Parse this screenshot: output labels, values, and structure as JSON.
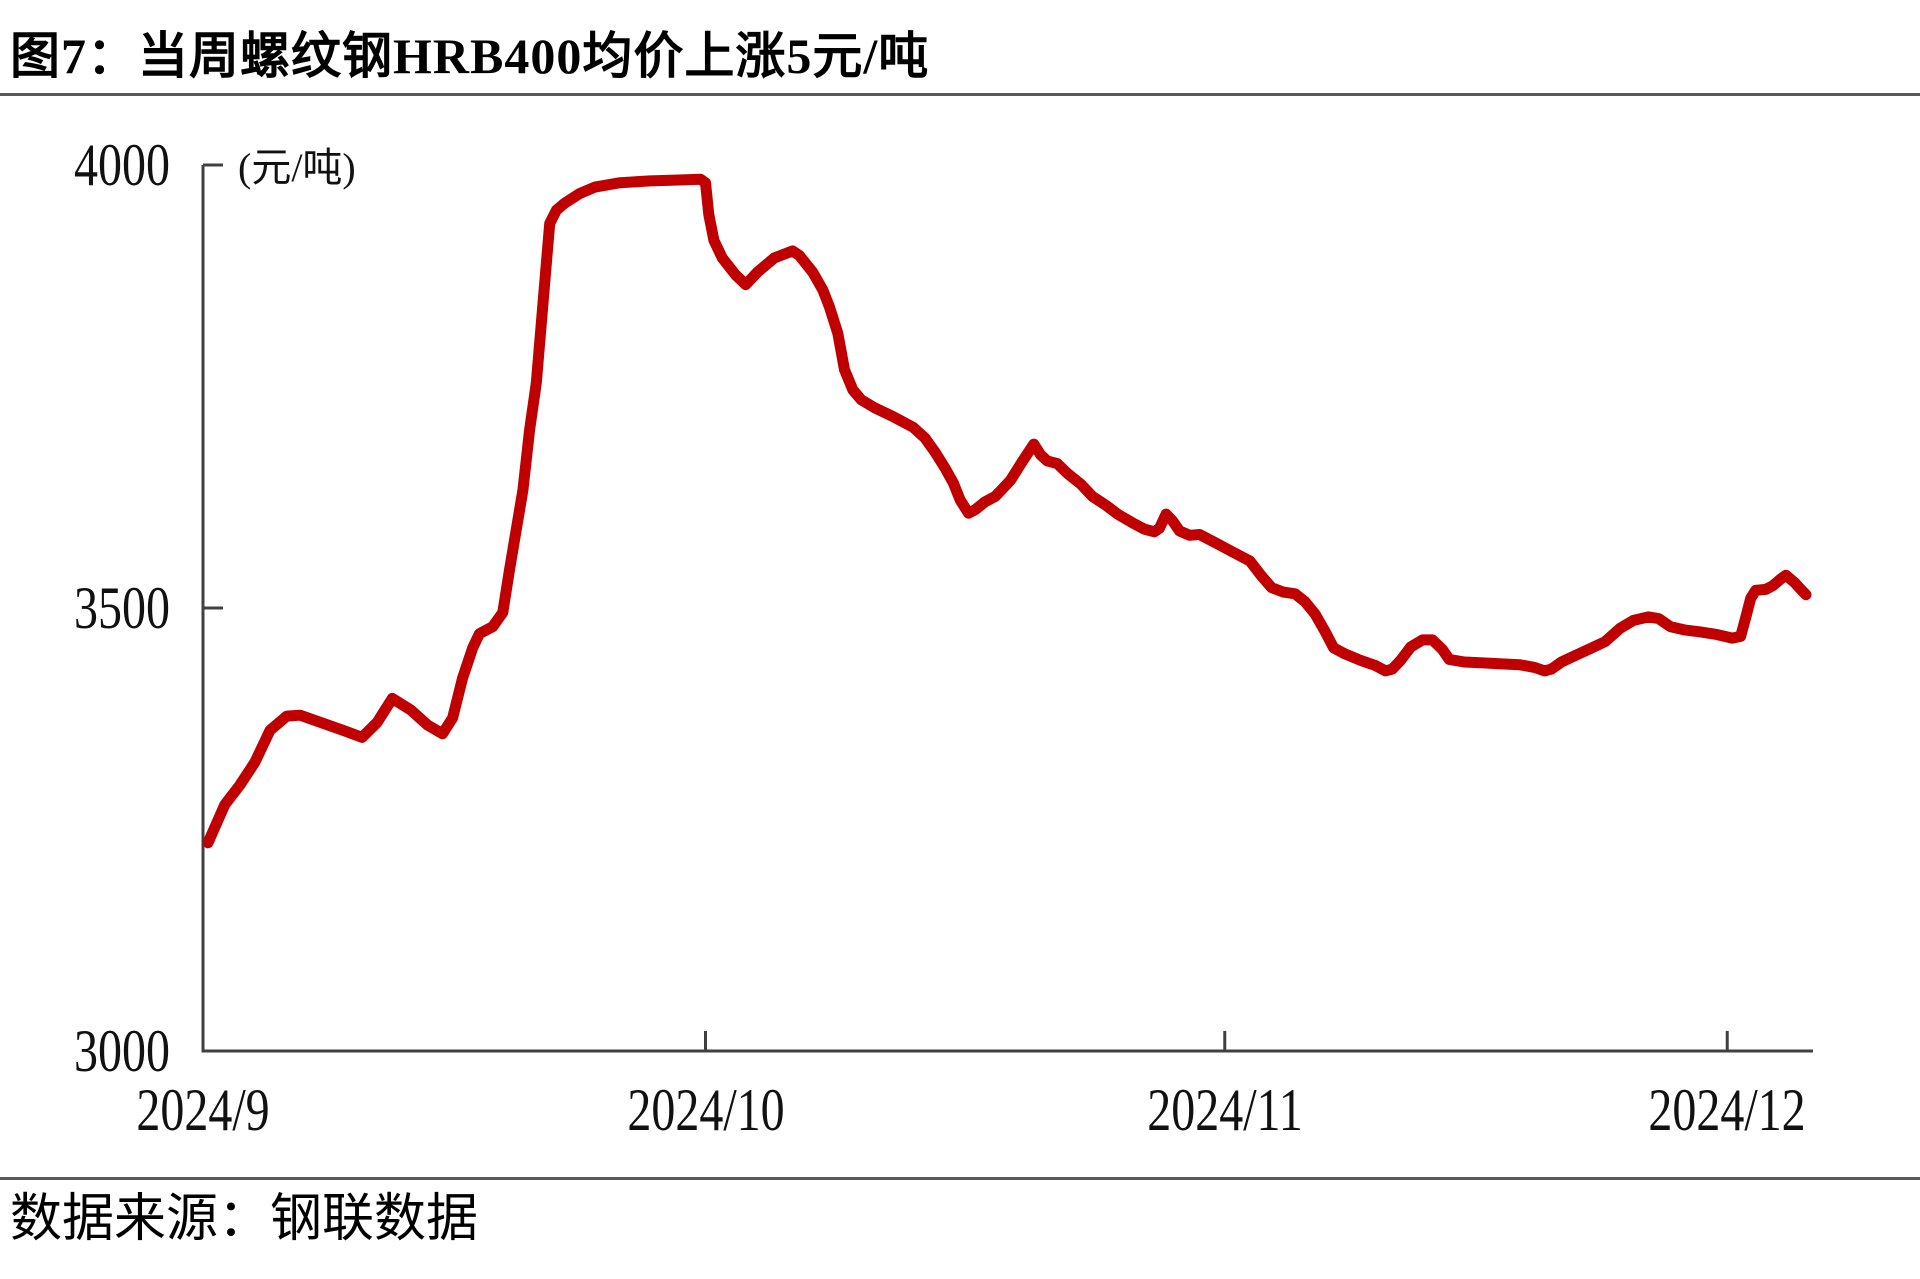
{
  "header": {
    "title": "图7：当周螺纹钢HRB400均价上涨5元/吨"
  },
  "footer": {
    "source": "数据来源：钢联数据"
  },
  "colors": {
    "line": "#C00000",
    "axis": "#404040",
    "rule": "#595959",
    "text": "#000000"
  },
  "chart_data": {
    "type": "line",
    "title": "图7：当周螺纹钢HRB400均价上涨5元/吨",
    "unit_label": "(元/吨)",
    "xlabel": "",
    "ylabel": "元/吨",
    "ylim": [
      3000,
      4000
    ],
    "y_ticks": [
      4000,
      3500,
      3000
    ],
    "x_ticks": [
      {
        "label": "2024/9",
        "day": 0
      },
      {
        "label": "2024/10",
        "day": 30
      },
      {
        "label": "2024/11",
        "day": 61
      },
      {
        "label": "2024/12",
        "day": 91
      }
    ],
    "x_domain_days": [
      0,
      96
    ],
    "grid": false,
    "legend": "none",
    "series_color": "#C00000",
    "points_format": [
      "days_since_2024_09_01",
      "price_yuan_per_ton"
    ],
    "points": [
      [
        0.3,
        3235
      ],
      [
        1.3,
        3278
      ],
      [
        2.2,
        3300
      ],
      [
        3.1,
        3326
      ],
      [
        4.0,
        3362
      ],
      [
        5.0,
        3378
      ],
      [
        5.8,
        3379
      ],
      [
        7.0,
        3371
      ],
      [
        8.5,
        3361
      ],
      [
        9.5,
        3354
      ],
      [
        10.4,
        3371
      ],
      [
        11.3,
        3398
      ],
      [
        12.4,
        3385
      ],
      [
        13.4,
        3368
      ],
      [
        14.3,
        3358
      ],
      [
        14.9,
        3376
      ],
      [
        15.5,
        3421
      ],
      [
        16.1,
        3455
      ],
      [
        16.5,
        3471
      ],
      [
        17.3,
        3479
      ],
      [
        17.9,
        3495
      ],
      [
        18.3,
        3543
      ],
      [
        18.7,
        3588
      ],
      [
        19.1,
        3633
      ],
      [
        19.5,
        3701
      ],
      [
        19.9,
        3754
      ],
      [
        20.3,
        3844
      ],
      [
        20.7,
        3934
      ],
      [
        21.1,
        3949
      ],
      [
        21.6,
        3957
      ],
      [
        22.5,
        3968
      ],
      [
        23.4,
        3975
      ],
      [
        24.9,
        3980
      ],
      [
        26.7,
        3982
      ],
      [
        28.2,
        3983
      ],
      [
        29.7,
        3984
      ],
      [
        30.0,
        3980
      ],
      [
        30.2,
        3944
      ],
      [
        30.5,
        3915
      ],
      [
        31.0,
        3895
      ],
      [
        31.8,
        3876
      ],
      [
        32.4,
        3865
      ],
      [
        33.1,
        3879
      ],
      [
        34.1,
        3895
      ],
      [
        35.2,
        3903
      ],
      [
        35.6,
        3898
      ],
      [
        36.4,
        3879
      ],
      [
        37.0,
        3859
      ],
      [
        37.4,
        3840
      ],
      [
        37.9,
        3810
      ],
      [
        38.3,
        3769
      ],
      [
        38.8,
        3746
      ],
      [
        39.3,
        3735
      ],
      [
        40.1,
        3726
      ],
      [
        41.2,
        3716
      ],
      [
        42.4,
        3704
      ],
      [
        43.1,
        3692
      ],
      [
        43.7,
        3676
      ],
      [
        44.3,
        3658
      ],
      [
        44.8,
        3641
      ],
      [
        45.2,
        3622
      ],
      [
        45.7,
        3607
      ],
      [
        46.1,
        3611
      ],
      [
        46.7,
        3620
      ],
      [
        47.3,
        3626
      ],
      [
        48.2,
        3644
      ],
      [
        48.9,
        3665
      ],
      [
        49.6,
        3685
      ],
      [
        50.0,
        3673
      ],
      [
        50.4,
        3666
      ],
      [
        51.0,
        3663
      ],
      [
        51.6,
        3652
      ],
      [
        52.4,
        3640
      ],
      [
        53.1,
        3626
      ],
      [
        53.9,
        3616
      ],
      [
        54.6,
        3606
      ],
      [
        55.5,
        3596
      ],
      [
        56.2,
        3589
      ],
      [
        56.8,
        3586
      ],
      [
        57.1,
        3590
      ],
      [
        57.5,
        3606
      ],
      [
        57.9,
        3598
      ],
      [
        58.3,
        3587
      ],
      [
        58.9,
        3582
      ],
      [
        59.5,
        3583
      ],
      [
        60.4,
        3574
      ],
      [
        61.5,
        3563
      ],
      [
        62.5,
        3553
      ],
      [
        63.2,
        3536
      ],
      [
        63.8,
        3523
      ],
      [
        64.5,
        3518
      ],
      [
        65.2,
        3516
      ],
      [
        65.8,
        3507
      ],
      [
        66.4,
        3493
      ],
      [
        67.0,
        3473
      ],
      [
        67.5,
        3455
      ],
      [
        68.2,
        3448
      ],
      [
        69.1,
        3441
      ],
      [
        70.0,
        3435
      ],
      [
        70.6,
        3429
      ],
      [
        71.0,
        3431
      ],
      [
        71.5,
        3441
      ],
      [
        72.1,
        3456
      ],
      [
        72.8,
        3464
      ],
      [
        73.4,
        3464
      ],
      [
        74.0,
        3453
      ],
      [
        74.4,
        3442
      ],
      [
        75.3,
        3439
      ],
      [
        76.4,
        3438
      ],
      [
        77.4,
        3437
      ],
      [
        78.6,
        3436
      ],
      [
        79.5,
        3433
      ],
      [
        80.1,
        3429
      ],
      [
        80.5,
        3431
      ],
      [
        81.1,
        3439
      ],
      [
        81.9,
        3446
      ],
      [
        82.8,
        3454
      ],
      [
        83.7,
        3462
      ],
      [
        84.6,
        3477
      ],
      [
        85.4,
        3486
      ],
      [
        86.3,
        3490
      ],
      [
        86.9,
        3488
      ],
      [
        87.6,
        3479
      ],
      [
        88.5,
        3475
      ],
      [
        89.4,
        3473
      ],
      [
        90.4,
        3470
      ],
      [
        91.3,
        3466
      ],
      [
        91.8,
        3468
      ],
      [
        92.1,
        3489
      ],
      [
        92.4,
        3511
      ],
      [
        92.7,
        3520
      ],
      [
        93.3,
        3521
      ],
      [
        93.7,
        3525
      ],
      [
        94.2,
        3533
      ],
      [
        94.5,
        3537
      ],
      [
        95.0,
        3529
      ],
      [
        95.5,
        3519
      ],
      [
        95.7,
        3515
      ]
    ]
  }
}
